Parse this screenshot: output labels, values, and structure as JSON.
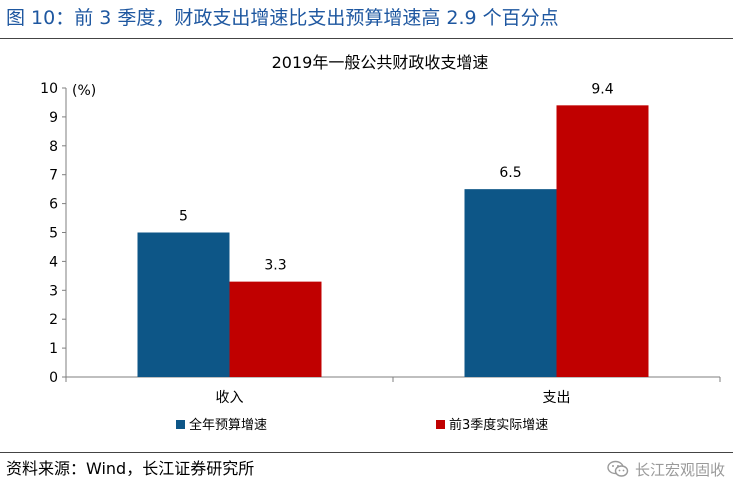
{
  "figure": {
    "title": "图 10：前 3 季度，财政支出增速比支出预算增速高 2.9 个百分点",
    "source": "资料来源：Wind，长江证券研究所",
    "watermark": "长江宏观固收",
    "watermark_icon": "wechat-icon"
  },
  "chart_data": {
    "type": "bar",
    "title": "2019年一般公共财政收支增速",
    "unit_label": "(%)",
    "categories": [
      "收入",
      "支出"
    ],
    "series": [
      {
        "name": "全年预算增速",
        "values": [
          5,
          6.5
        ],
        "labels": [
          "5",
          "6.5"
        ],
        "color": "#0d5687"
      },
      {
        "name": "前3季度实际增速",
        "values": [
          3.3,
          9.4
        ],
        "labels": [
          "3.3",
          "9.4"
        ],
        "color": "#c00000"
      }
    ],
    "ylim": [
      0,
      10
    ],
    "yticks": [
      0,
      1,
      2,
      3,
      4,
      5,
      6,
      7,
      8,
      9,
      10
    ],
    "grid": false,
    "legend": "bottom"
  }
}
